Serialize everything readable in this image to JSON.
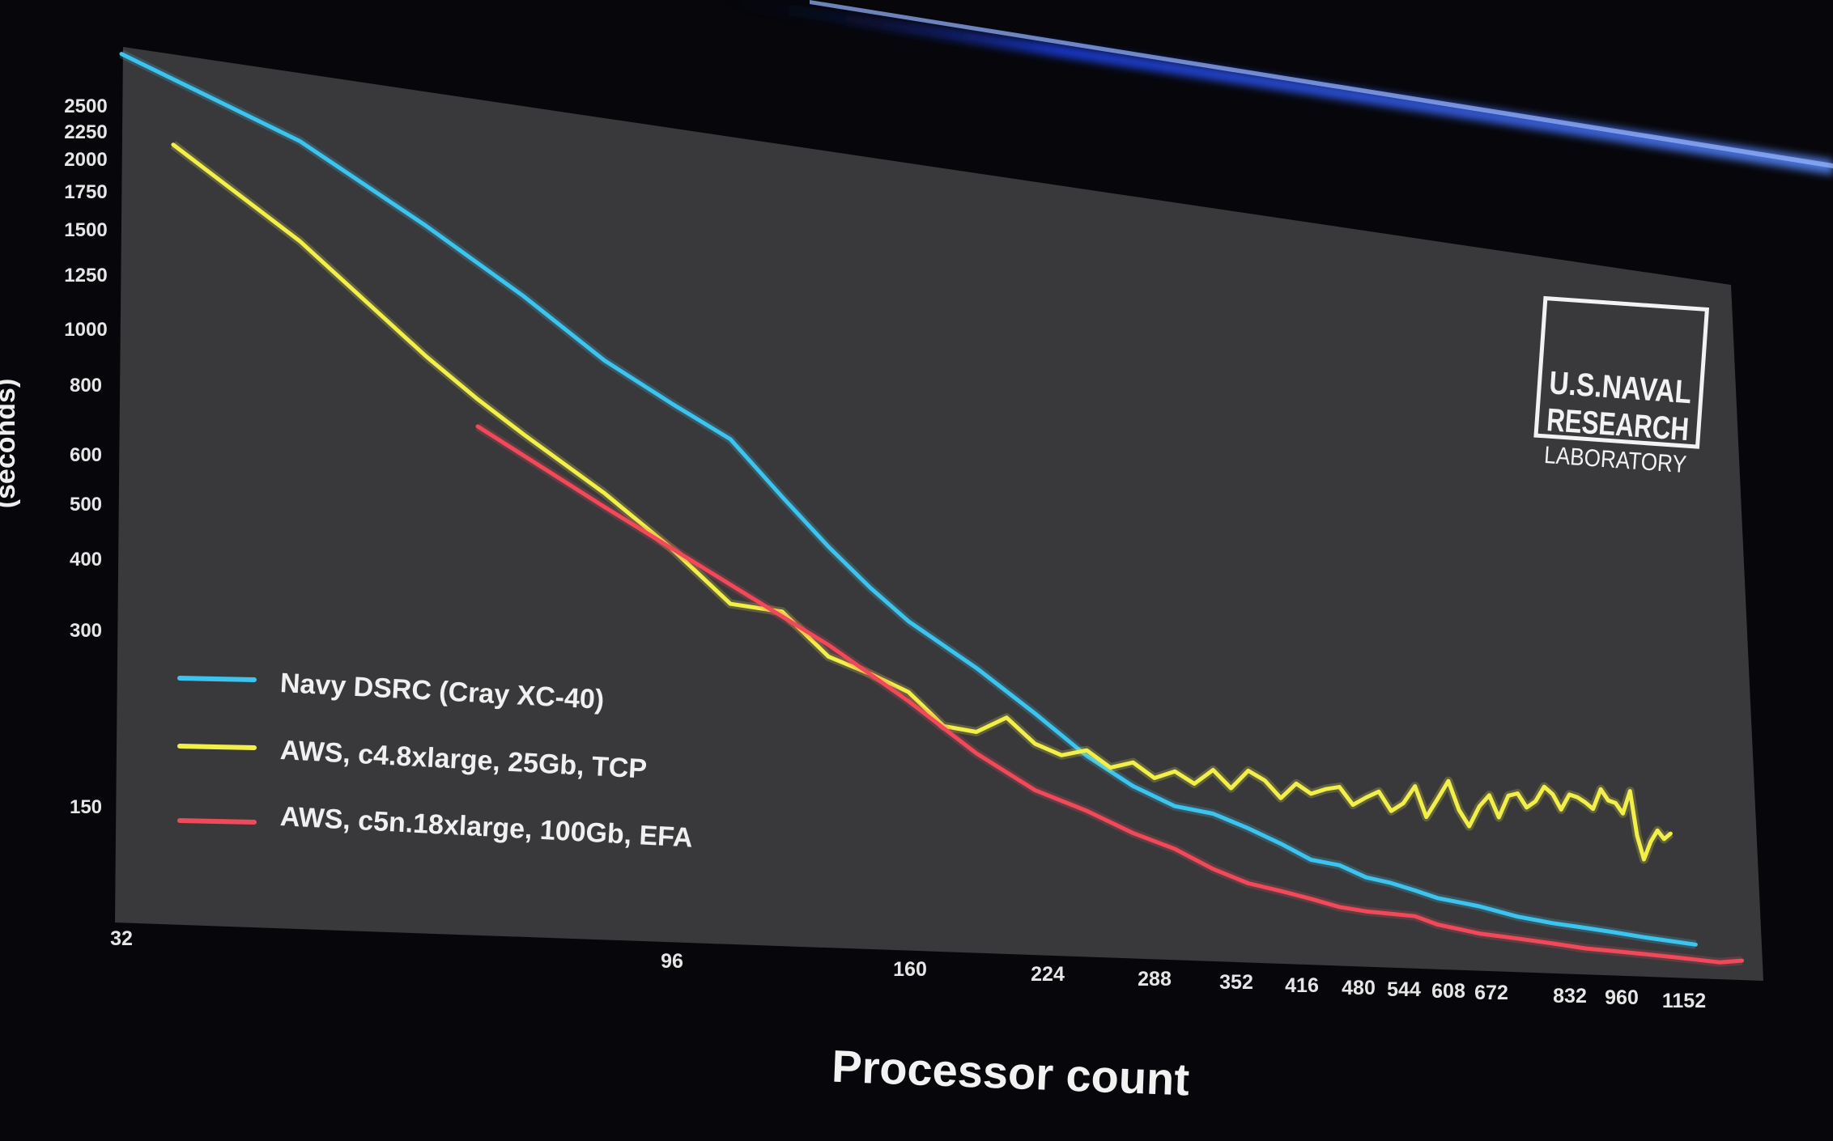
{
  "logo": {
    "line1": "U.S.NAVAL",
    "line2": "RESEARCH",
    "line3": "LABORATORY"
  },
  "chart_data": {
    "type": "line",
    "title": "",
    "xlabel": "Processor count",
    "ylabel": "(seconds)",
    "x_scale": "log",
    "y_scale": "log",
    "xlim": [
      32,
      1300
    ],
    "ylim": [
      125,
      3000
    ],
    "x_ticks": [
      "32",
      "96",
      "160",
      "224",
      "288",
      "352",
      "416",
      "480",
      "544",
      "608",
      "672",
      "832",
      "960",
      "1152"
    ],
    "y_ticks": [
      "2500",
      "2250",
      "2000",
      "1750",
      "1500",
      "1250",
      "1000",
      "800",
      "600",
      "500",
      "400",
      "300",
      "150"
    ],
    "legend_position": "bottom-left",
    "grid": false,
    "series": [
      {
        "name": "Navy DSRC (Cray XC-40)",
        "color": "#3cc4ee",
        "x": [
          32,
          48,
          64,
          80,
          96,
          112,
          128,
          144,
          160,
          176,
          192,
          224,
          256,
          288,
          320,
          352,
          384,
          416,
          448,
          480,
          512,
          544,
          576,
          608,
          640,
          672,
          704,
          768,
          832,
          896,
          960,
          1024,
          1152
        ],
        "y": [
          2900,
          2150,
          1600,
          1250,
          1000,
          860,
          760,
          620,
          520,
          450,
          400,
          340,
          290,
          250,
          225,
          210,
          205,
          195,
          185,
          175,
          172,
          165,
          162,
          158,
          154,
          152,
          150,
          145,
          142,
          140,
          138,
          136,
          133
        ]
      },
      {
        "name": "AWS, c4.8xlarge, 25Gb, TCP",
        "color": "#f2ee4a",
        "x": [
          36,
          48,
          64,
          72,
          80,
          96,
          112,
          128,
          144,
          160,
          176,
          192,
          208,
          224,
          240,
          256,
          272,
          288,
          304,
          320,
          336,
          352,
          368,
          384,
          400,
          416,
          432,
          448,
          464,
          480,
          496,
          512,
          528,
          544,
          560,
          576,
          592,
          608,
          624,
          640,
          656,
          672,
          688,
          704,
          720,
          736,
          752,
          768,
          784,
          800,
          816,
          832,
          848,
          864,
          880,
          896,
          912,
          928,
          944,
          960,
          976,
          992,
          1008,
          1024,
          1040,
          1056,
          1072,
          1088
        ],
        "y": [
          2100,
          1500,
          1000,
          860,
          760,
          620,
          510,
          420,
          410,
          350,
          330,
          310,
          275,
          270,
          285,
          260,
          250,
          255,
          240,
          245,
          232,
          238,
          228,
          240,
          225,
          240,
          232,
          218,
          230,
          222,
          226,
          228,
          214,
          220,
          225,
          210,
          216,
          230,
          206,
          220,
          235,
          212,
          200,
          215,
          224,
          207,
          224,
          226,
          215,
          220,
          232,
          226,
          214,
          226,
          224,
          220,
          215,
          231,
          222,
          220,
          212,
          230,
          196,
          180,
          192,
          200,
          194,
          198
        ]
      },
      {
        "name": "AWS, c5n.18xlarge, 100Gb, EFA",
        "color": "#f04a5a",
        "x": [
          72,
          96,
          128,
          160,
          192,
          224,
          256,
          288,
          320,
          352,
          384,
          416,
          448,
          480,
          512,
          544,
          576,
          608,
          640,
          672,
          704,
          768,
          832,
          896,
          960,
          1024,
          1088,
          1152,
          1216,
          1280
        ],
        "y": [
          780,
          590,
          450,
          365,
          300,
          250,
          220,
          205,
          190,
          180,
          168,
          160,
          156,
          152,
          148,
          146,
          145,
          144,
          140,
          138,
          136,
          134,
          132,
          130,
          129,
          128,
          127,
          126,
          125,
          126
        ]
      }
    ]
  }
}
